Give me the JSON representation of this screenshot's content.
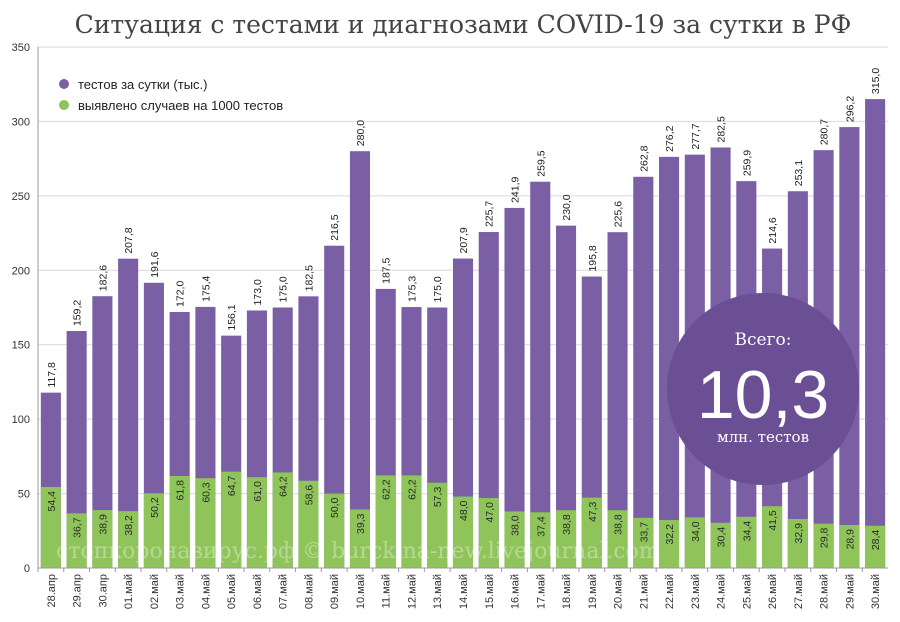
{
  "chart_data": {
    "type": "bar",
    "title": "Ситуация с тестами и диагнозами COVID-19 за сутки в РФ",
    "categories": [
      "28.апр",
      "29.апр",
      "30.апр",
      "01.май",
      "02.май",
      "03.май",
      "04.май",
      "05.май",
      "06.май",
      "07.май",
      "08.май",
      "09.май",
      "10.май",
      "11.май",
      "12.май",
      "13.май",
      "14.май",
      "15.май",
      "16.май",
      "17.май",
      "18.май",
      "19.май",
      "20.май",
      "21.май",
      "22.май",
      "23.май",
      "24.май",
      "25.май",
      "26.май",
      "27.май",
      "28.май",
      "29.май",
      "30.май"
    ],
    "series": [
      {
        "name": "тестов за сутки (тыс.)",
        "color": "#7b5fa5",
        "values": [
          117.8,
          159.2,
          182.6,
          207.8,
          191.6,
          172.0,
          175.4,
          156.1,
          173.0,
          175.0,
          182.5,
          216.5,
          280.0,
          187.5,
          175.3,
          175.0,
          207.9,
          225.7,
          241.9,
          259.5,
          230.0,
          195.8,
          225.6,
          262.8,
          276.2,
          277.7,
          282.5,
          259.9,
          214.6,
          253.1,
          280.7,
          296.2,
          315.0
        ],
        "labels": [
          "117,8",
          "159,2",
          "182,6",
          "207,8",
          "191,6",
          "172,0",
          "175,4",
          "156,1",
          "173,0",
          "175,0",
          "182,5",
          "216,5",
          "280,0",
          "187,5",
          "175,3",
          "175,0",
          "207,9",
          "225,7",
          "241,9",
          "259,5",
          "230,0",
          "195,8",
          "225,6",
          "262,8",
          "276,2",
          "277,7",
          "282,5",
          "259,9",
          "214,6",
          "253,1",
          "280,7",
          "296,2",
          "315,0"
        ]
      },
      {
        "name": "выявлено случаев на 1000 тестов",
        "color": "#8fc45a",
        "values": [
          54.4,
          36.7,
          38.9,
          38.2,
          50.2,
          61.8,
          60.3,
          64.7,
          61.0,
          64.2,
          58.6,
          50.0,
          39.3,
          62.2,
          62.2,
          57.3,
          48.0,
          47.0,
          38.0,
          37.4,
          38.8,
          47.3,
          38.8,
          33.7,
          32.2,
          34.0,
          30.4,
          34.4,
          41.5,
          32.9,
          29.8,
          28.9,
          28.4
        ],
        "labels": [
          "54,4",
          "36,7",
          "38,9",
          "38,2",
          "50,2",
          "61,8",
          "60,3",
          "64,7",
          "61,0",
          "64,2",
          "58,6",
          "50,0",
          "39,3",
          "62,2",
          "62,2",
          "57,3",
          "48,0",
          "47,0",
          "38,0",
          "37,4",
          "38,8",
          "47,3",
          "38,8",
          "33,7",
          "32,2",
          "34,0",
          "30,4",
          "34,4",
          "41,5",
          "32,9",
          "29,8",
          "28,9",
          "28,4"
        ]
      }
    ],
    "ylim": [
      0,
      350
    ],
    "yticks": [
      0,
      50,
      100,
      150,
      200,
      250,
      300,
      350
    ],
    "grid": true,
    "legend": "top-left",
    "badge": {
      "top": "Всего:",
      "value": "10,3",
      "bottom": "млн. тестов",
      "color": "#6a4f94"
    },
    "watermark": "стопкоронавирус.рф © burckina-new.livejournal.com"
  }
}
